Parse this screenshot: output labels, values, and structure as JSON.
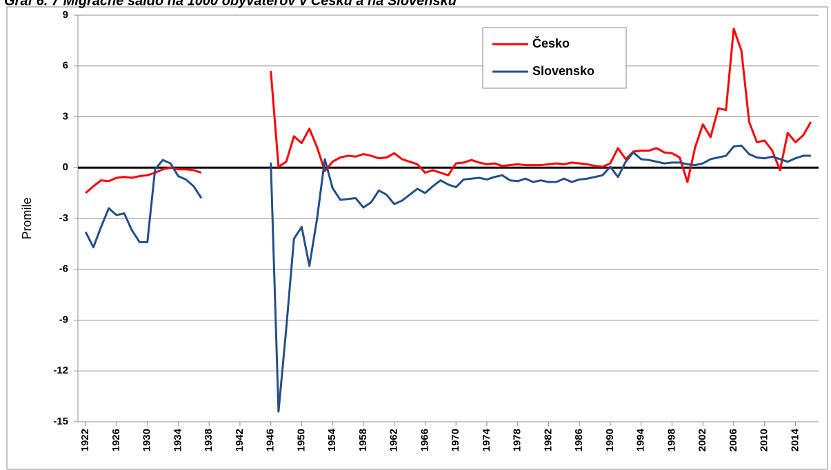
{
  "chart_data": {
    "type": "line",
    "title": "Graf 6. 7 Migračné saldo na 1000 obyvateľov v Česku a na Slovensku",
    "y_label": "Promile",
    "x": [
      1922,
      1923,
      1924,
      1925,
      1926,
      1927,
      1928,
      1929,
      1930,
      1931,
      1932,
      1933,
      1934,
      1935,
      1936,
      1937,
      1938,
      1939,
      1940,
      1941,
      1942,
      1943,
      1944,
      1945,
      1946,
      1947,
      1948,
      1949,
      1950,
      1951,
      1952,
      1953,
      1954,
      1955,
      1956,
      1957,
      1958,
      1959,
      1960,
      1961,
      1962,
      1963,
      1964,
      1965,
      1966,
      1967,
      1968,
      1969,
      1970,
      1971,
      1972,
      1973,
      1974,
      1975,
      1976,
      1977,
      1978,
      1979,
      1980,
      1981,
      1982,
      1983,
      1984,
      1985,
      1986,
      1987,
      1988,
      1989,
      1990,
      1991,
      1992,
      1993,
      1994,
      1995,
      1996,
      1997,
      1998,
      1999,
      2000,
      2001,
      2002,
      2003,
      2004,
      2005,
      2006,
      2007,
      2008,
      2009,
      2010,
      2011,
      2012,
      2013,
      2014,
      2015,
      2016
    ],
    "series": [
      {
        "name": "Česko",
        "color": "#ff0000",
        "values": [
          -1.5,
          -1.1,
          -0.75,
          -0.8,
          -0.6,
          -0.55,
          -0.6,
          -0.5,
          -0.45,
          -0.3,
          -0.1,
          0.0,
          -0.1,
          -0.1,
          -0.15,
          -0.3,
          null,
          null,
          null,
          null,
          null,
          null,
          null,
          null,
          5.7,
          0.05,
          0.35,
          1.85,
          1.45,
          2.3,
          1.2,
          -0.2,
          0.35,
          0.6,
          0.7,
          0.65,
          0.8,
          0.7,
          0.55,
          0.6,
          0.85,
          0.5,
          0.35,
          0.2,
          -0.3,
          -0.15,
          -0.3,
          -0.45,
          0.25,
          0.3,
          0.45,
          0.3,
          0.2,
          0.25,
          0.1,
          0.15,
          0.2,
          0.15,
          0.15,
          0.15,
          0.2,
          0.25,
          0.2,
          0.3,
          0.25,
          0.2,
          0.1,
          0.05,
          0.25,
          1.15,
          0.5,
          0.95,
          1.0,
          1.0,
          1.15,
          0.9,
          0.85,
          0.6,
          -0.85,
          1.2,
          2.55,
          1.8,
          3.5,
          3.4,
          8.2,
          6.9,
          2.7,
          1.5,
          1.6,
          1.0,
          -0.15,
          2.05,
          1.5,
          1.9,
          2.7
        ]
      },
      {
        "name": "Slovensko",
        "color": "#254f87",
        "values": [
          -3.8,
          -4.7,
          -3.5,
          -2.4,
          -2.8,
          -2.7,
          -3.7,
          -4.4,
          -4.4,
          -0.1,
          0.45,
          0.25,
          -0.5,
          -0.7,
          -1.1,
          -1.8,
          null,
          null,
          null,
          null,
          null,
          null,
          null,
          null,
          0.3,
          -14.4,
          -9.5,
          -4.2,
          -3.5,
          -5.8,
          -3.0,
          0.5,
          -1.2,
          -1.9,
          -1.85,
          -1.8,
          -2.35,
          -2.05,
          -1.35,
          -1.6,
          -2.15,
          -1.95,
          -1.6,
          -1.25,
          -1.5,
          -1.1,
          -0.75,
          -1.0,
          -1.15,
          -0.7,
          -0.65,
          -0.6,
          -0.7,
          -0.55,
          -0.45,
          -0.75,
          -0.8,
          -0.65,
          -0.85,
          -0.75,
          -0.85,
          -0.85,
          -0.65,
          -0.85,
          -0.7,
          -0.65,
          -0.55,
          -0.45,
          0.05,
          -0.55,
          0.35,
          0.9,
          0.5,
          0.45,
          0.35,
          0.25,
          0.3,
          0.3,
          0.2,
          0.15,
          0.25,
          0.5,
          0.6,
          0.7,
          1.25,
          1.3,
          0.8,
          0.6,
          0.55,
          0.65,
          0.5,
          0.35,
          0.55,
          0.7,
          0.7
        ]
      }
    ],
    "xlim": [
      1921,
      2017
    ],
    "xticks": [
      1922,
      1926,
      1930,
      1934,
      1938,
      1942,
      1946,
      1950,
      1954,
      1958,
      1962,
      1966,
      1970,
      1974,
      1978,
      1982,
      1986,
      1990,
      1994,
      1998,
      2002,
      2006,
      2010,
      2014
    ],
    "ylim": [
      -15,
      9
    ],
    "yticks": [
      -15,
      -12,
      -9,
      -6,
      -3,
      0,
      3,
      6,
      9
    ],
    "grid": true,
    "legend": "upper right"
  }
}
